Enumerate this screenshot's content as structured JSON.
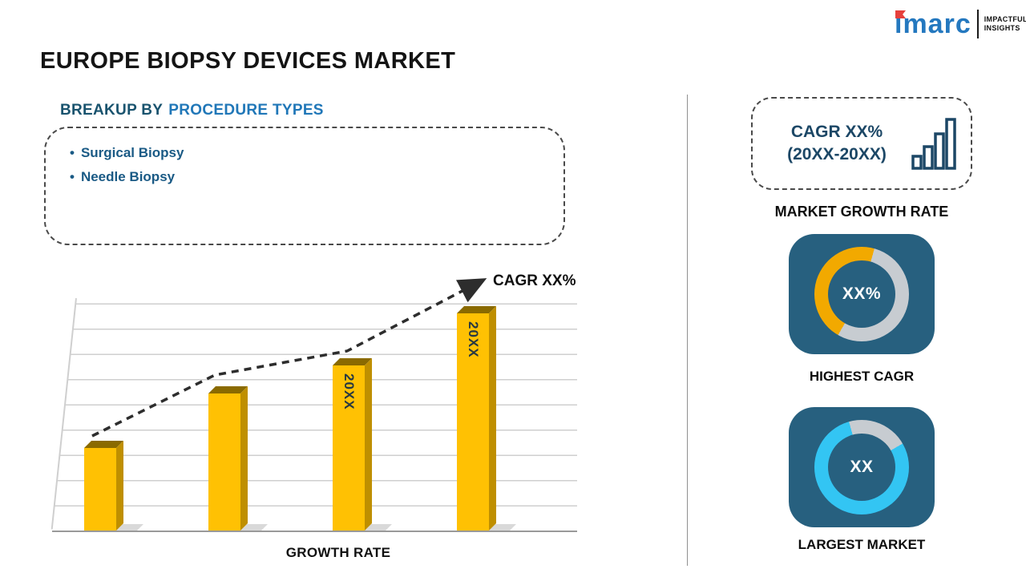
{
  "logo": {
    "brand": "imarc",
    "tagline_line1": "IMPACTFUL",
    "tagline_line2": "INSIGHTS"
  },
  "title": "EUROPE BIOPSY DEVICES MARKET",
  "breakup": {
    "heading_prefix": "BREAKUP BY",
    "heading_highlight": "PROCEDURE TYPES",
    "bullet": "•",
    "items": [
      "Surgical Biopsy",
      "Needle Biopsy"
    ]
  },
  "chart_data": {
    "type": "bar",
    "categories": [
      "",
      "",
      "20XX",
      "20XX"
    ],
    "values": [
      38,
      63,
      76,
      100
    ],
    "xlabel": "GROWTH RATE",
    "annotation": "CAGR XX%",
    "bar_color": "#FFC103",
    "trend": "dashed ascending arrow",
    "grid": true,
    "legend": "none"
  },
  "right_panel": {
    "cagr_box": {
      "line1": "CAGR XX%",
      "line2": "(20XX-20XX)"
    },
    "market_growth_label": "MARKET GROWTH RATE",
    "cards": [
      {
        "value": "XX%",
        "label": "HIGHEST CAGR",
        "arc_color": "#F2A900",
        "arc_start_deg": 210,
        "arc_percent": 46,
        "track_color": "#C7CCD1",
        "bg": "#27607F"
      },
      {
        "value": "XX",
        "label": "LARGEST MARKET",
        "arc_color": "#33C5F3",
        "arc_start_deg": 60,
        "arc_percent": 79,
        "track_color": "#C7CCD1",
        "bg": "#27607F"
      }
    ]
  }
}
